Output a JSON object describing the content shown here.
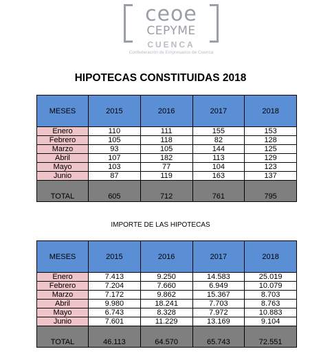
{
  "logo": {
    "line1": "ceoe",
    "line2": "CEPYME",
    "line3": "CUENCA",
    "subtitle": "Confederación de Empresarios de Cuenca"
  },
  "title": "HIPOTECAS CONSTITUIDAS 2018",
  "table1": {
    "header": [
      "MESES",
      "2015",
      "2016",
      "2017",
      "2018"
    ],
    "rows": [
      [
        "Enero",
        "110",
        "111",
        "155",
        "153"
      ],
      [
        "Febrero",
        "105",
        "118",
        "82",
        "128"
      ],
      [
        "Marzo",
        "93",
        "105",
        "144",
        "125"
      ],
      [
        "Abril",
        "107",
        "182",
        "113",
        "129"
      ],
      [
        "Mayo",
        "103",
        "77",
        "104",
        "123"
      ],
      [
        "Junio",
        "87",
        "119",
        "163",
        "137"
      ]
    ],
    "total": [
      "TOTAL",
      "605",
      "712",
      "761",
      "795"
    ]
  },
  "subtitle": "IMPORTE DE LAS HIPOTECAS",
  "table2": {
    "header": [
      "MESES",
      "2015",
      "2016",
      "2017",
      "2018"
    ],
    "rows": [
      [
        "Enero",
        "7.413",
        "9.250",
        "14.583",
        "25.019"
      ],
      [
        "Febrero",
        "7.204",
        "7.660",
        "6.949",
        "10.079"
      ],
      [
        "Marzo",
        "7.172",
        "9.862",
        "15.367",
        "8.703"
      ],
      [
        "Abril",
        "9.980",
        "18.241",
        "7.703",
        "8.763"
      ],
      [
        "Mayo",
        "6.743",
        "8.328",
        "7.972",
        "10.883"
      ],
      [
        "Junio",
        "7.601",
        "11.229",
        "13.169",
        "9.104"
      ]
    ],
    "total": [
      "TOTAL",
      "46.113",
      "64.570",
      "65.743",
      "72.551"
    ]
  },
  "colors": {
    "header_bg": "#5a8fd6",
    "month_bg": "#eec4c8",
    "total_bg": "#7f7f7f",
    "logo_gray": "#9a9ea6"
  }
}
